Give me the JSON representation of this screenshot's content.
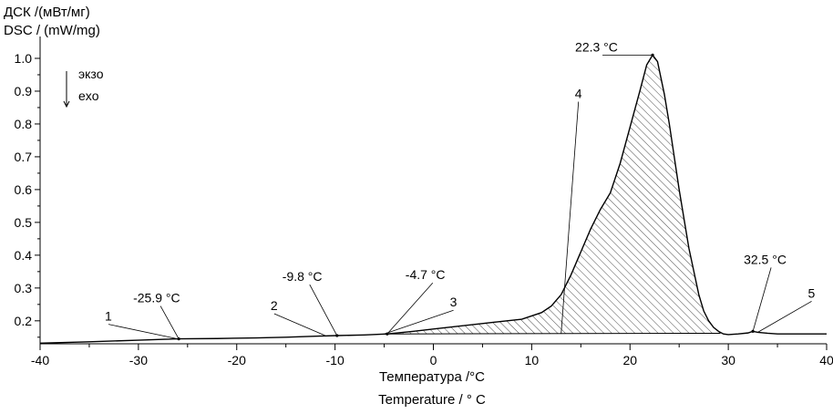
{
  "chart_data": {
    "type": "line",
    "ylabel_ru": "ДСК /(мВт/мг)",
    "ylabel_en": "DSC / (mW/mg)",
    "xlabel_ru": "Температура /°C",
    "xlabel_en": "Temperature / ° C",
    "exo_label_ru": "экзо",
    "exo_label_en": "exo",
    "xlim": [
      -40,
      40
    ],
    "ylim": [
      0.13,
      1.05
    ],
    "x_ticks": [
      -40,
      -30,
      -20,
      -10,
      0,
      10,
      20,
      30,
      40
    ],
    "y_ticks": [
      0.2,
      0.3,
      0.4,
      0.5,
      0.6,
      0.7,
      0.8,
      0.9,
      1.0
    ],
    "grid": false,
    "series": [
      {
        "color": "#000000",
        "x": [
          -40,
          -35,
          -30,
          -28,
          -25.9,
          -22,
          -18,
          -15,
          -12,
          -9.8,
          -7,
          -4.7,
          -2,
          0,
          3,
          6,
          9,
          11,
          12,
          13,
          14,
          15,
          16,
          17,
          18,
          19,
          20,
          21,
          21.7,
          22.3,
          22.8,
          23.5,
          24,
          25,
          26,
          27,
          27.5,
          28,
          28.5,
          29,
          29.5,
          30,
          31,
          32,
          32.5,
          33,
          34,
          35,
          37,
          40
        ],
        "y": [
          0.132,
          0.136,
          0.141,
          0.143,
          0.145,
          0.146,
          0.148,
          0.15,
          0.153,
          0.155,
          0.157,
          0.16,
          0.168,
          0.175,
          0.185,
          0.195,
          0.205,
          0.225,
          0.245,
          0.28,
          0.34,
          0.41,
          0.48,
          0.54,
          0.59,
          0.68,
          0.79,
          0.9,
          0.98,
          1.01,
          0.99,
          0.89,
          0.8,
          0.6,
          0.42,
          0.28,
          0.23,
          0.2,
          0.18,
          0.168,
          0.16,
          0.158,
          0.16,
          0.163,
          0.168,
          0.165,
          0.162,
          0.16,
          0.16,
          0.16
        ]
      }
    ],
    "shaded_region": {
      "x_start": -4.7,
      "x_end": 29.2,
      "baseline_y": [
        0.16,
        0.162
      ]
    },
    "annotations": [
      {
        "text": "-25.9 °C",
        "x": -25.9,
        "y": 0.145
      },
      {
        "text": "-9.8 °C",
        "x": -9.8,
        "y": 0.155
      },
      {
        "text": "-4.7 °C",
        "x": -4.7,
        "y": 0.16
      },
      {
        "text": "22.3 °C",
        "x": 22.3,
        "y": 1.01
      },
      {
        "text": "32.5 °C",
        "x": 32.5,
        "y": 0.168
      }
    ],
    "numbered_markers": [
      {
        "text": "1",
        "x": -26,
        "y": 0.145
      },
      {
        "text": "2",
        "x": -11,
        "y": 0.155
      },
      {
        "text": "3",
        "x": -5,
        "y": 0.16
      },
      {
        "text": "4",
        "x": 13,
        "y": 0.162
      },
      {
        "text": "5",
        "x": 33,
        "y": 0.165
      }
    ]
  }
}
